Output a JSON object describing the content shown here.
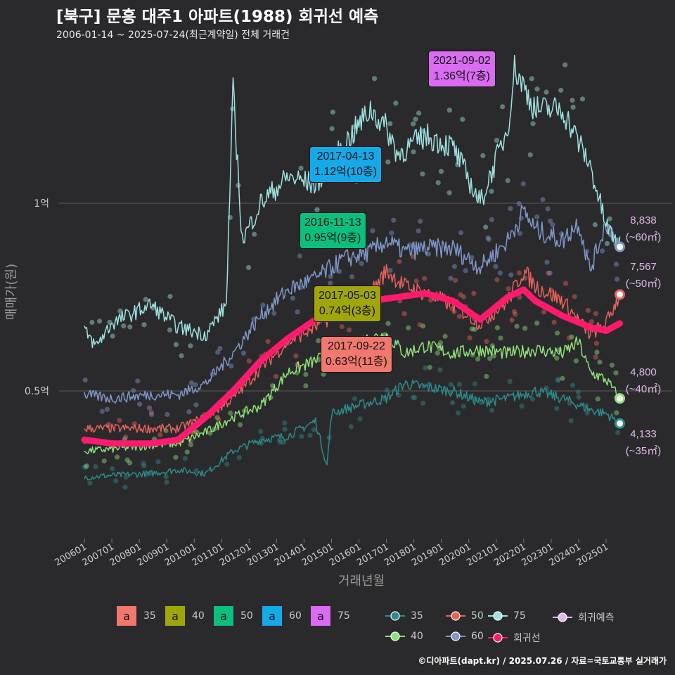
{
  "title": "[북구] 문흥 대주1 아파트(1988) 회귀선 예측",
  "subtitle": "2006-01-14 ~ 2025-07-24(최근계약일) 전체 거래건",
  "credit": "©디아파트(dapt.kr) / 2025.07.26 / 자료=국토교통부 실거래가",
  "chart_data": {
    "type": "line",
    "xlabel": "거래년월",
    "ylabel": "매매가(원)",
    "x_range": [
      "2006-01",
      "2025-07"
    ],
    "x_ticks": [
      "200601",
      "200701",
      "200801",
      "200901",
      "201001",
      "201101",
      "201201",
      "201301",
      "201401",
      "201501",
      "201601",
      "201701",
      "201801",
      "201901",
      "202001",
      "202101",
      "202201",
      "202301",
      "202401",
      "202501"
    ],
    "y_unit": "만원",
    "y_range": [
      1500,
      13500
    ],
    "y_ticks": [
      {
        "value": 5000,
        "label": "0.5억"
      },
      {
        "value": 10000,
        "label": "1억"
      }
    ],
    "grid": "horizontal",
    "series": [
      {
        "name": "35",
        "color": "#2e8a8c",
        "points": [
          [
            "2006-01",
            2700
          ],
          [
            "2007-01",
            2750
          ],
          [
            "2008-06",
            2800
          ],
          [
            "2009-06",
            2900
          ],
          [
            "2010-06",
            2800
          ],
          [
            "2011-06",
            3400
          ],
          [
            "2012-06",
            3700
          ],
          [
            "2013-06",
            3800
          ],
          [
            "2014-06",
            4200
          ],
          [
            "2014-11",
            3000
          ],
          [
            "2015-01",
            4400
          ],
          [
            "2015-06",
            4500
          ],
          [
            "2016-06",
            4700
          ],
          [
            "2017-01",
            4800
          ],
          [
            "2017-09",
            5200
          ],
          [
            "2018-06",
            5100
          ],
          [
            "2019-06",
            5000
          ],
          [
            "2020-06",
            4700
          ],
          [
            "2021-06",
            4800
          ],
          [
            "2022-06",
            5000
          ],
          [
            "2023-06",
            4800
          ],
          [
            "2024-06",
            4500
          ],
          [
            "2025-01",
            4400
          ],
          [
            "2025-07",
            4133
          ]
        ]
      },
      {
        "name": "40",
        "color": "#8fe07a",
        "points": [
          [
            "2006-01",
            3400
          ],
          [
            "2007-01",
            3450
          ],
          [
            "2008-06",
            3550
          ],
          [
            "2009-06",
            3600
          ],
          [
            "2010-06",
            3900
          ],
          [
            "2011-06",
            4300
          ],
          [
            "2012-06",
            4600
          ],
          [
            "2013-06",
            5500
          ],
          [
            "2014-06",
            5800
          ],
          [
            "2015-06",
            6200
          ],
          [
            "2016-06",
            6400
          ],
          [
            "2017-01",
            6500
          ],
          [
            "2017-09",
            6000
          ],
          [
            "2018-06",
            6200
          ],
          [
            "2019-06",
            6000
          ],
          [
            "2020-06",
            6100
          ],
          [
            "2021-06",
            6000
          ],
          [
            "2022-06",
            6100
          ],
          [
            "2023-06",
            6000
          ],
          [
            "2024-01",
            6300
          ],
          [
            "2024-06",
            5500
          ],
          [
            "2025-01",
            5300
          ],
          [
            "2025-07",
            4800
          ]
        ]
      },
      {
        "name": "50",
        "color": "#e8625a",
        "points": [
          [
            "2006-01",
            4000
          ],
          [
            "2007-01",
            4000
          ],
          [
            "2008-06",
            4000
          ],
          [
            "2009-06",
            4000
          ],
          [
            "2010-06",
            4300
          ],
          [
            "2011-06",
            4800
          ],
          [
            "2012-06",
            5600
          ],
          [
            "2013-06",
            6300
          ],
          [
            "2014-06",
            6700
          ],
          [
            "2015-06",
            7200
          ],
          [
            "2016-06",
            7600
          ],
          [
            "2017-01",
            8200
          ],
          [
            "2017-09",
            7800
          ],
          [
            "2018-06",
            7600
          ],
          [
            "2019-06",
            7300
          ],
          [
            "2020-06",
            6800
          ],
          [
            "2021-06",
            7400
          ],
          [
            "2022-01",
            8200
          ],
          [
            "2022-06",
            7800
          ],
          [
            "2023-06",
            7400
          ],
          [
            "2024-06",
            6500
          ],
          [
            "2025-01",
            6800
          ],
          [
            "2025-07",
            7567
          ]
        ]
      },
      {
        "name": "60",
        "color": "#7f97c9",
        "points": [
          [
            "2006-01",
            4900
          ],
          [
            "2007-01",
            4800
          ],
          [
            "2008-06",
            4900
          ],
          [
            "2009-06",
            4900
          ],
          [
            "2010-06",
            5200
          ],
          [
            "2011-06",
            6000
          ],
          [
            "2012-06",
            7000
          ],
          [
            "2013-06",
            7700
          ],
          [
            "2014-06",
            8000
          ],
          [
            "2015-06",
            8500
          ],
          [
            "2016-06",
            8700
          ],
          [
            "2017-01",
            9000
          ],
          [
            "2017-09",
            8700
          ],
          [
            "2018-06",
            8800
          ],
          [
            "2019-06",
            8800
          ],
          [
            "2020-06",
            8300
          ],
          [
            "2021-06",
            9000
          ],
          [
            "2022-01",
            9800
          ],
          [
            "2022-06",
            9300
          ],
          [
            "2023-06",
            9000
          ],
          [
            "2024-01",
            9500
          ],
          [
            "2024-06",
            8200
          ],
          [
            "2025-01",
            9500
          ],
          [
            "2025-07",
            8838
          ]
        ]
      },
      {
        "name": "75",
        "color": "#9fe0e0",
        "points": [
          [
            "2006-01",
            6600
          ],
          [
            "2006-06",
            6200
          ],
          [
            "2007-01",
            6800
          ],
          [
            "2008-06",
            7300
          ],
          [
            "2009-06",
            6700
          ],
          [
            "2010-06",
            6500
          ],
          [
            "2011-03",
            7300
          ],
          [
            "2011-06",
            13000
          ],
          [
            "2011-10",
            9000
          ],
          [
            "2012-06",
            10000
          ],
          [
            "2013-06",
            10700
          ],
          [
            "2014-06",
            10500
          ],
          [
            "2015-06",
            11500
          ],
          [
            "2016-06",
            12500
          ],
          [
            "2017-01",
            12000
          ],
          [
            "2017-06",
            11300
          ],
          [
            "2018-06",
            11800
          ],
          [
            "2019-06",
            11500
          ],
          [
            "2020-06",
            10000
          ],
          [
            "2021-06",
            12000
          ],
          [
            "2021-09",
            13600
          ],
          [
            "2022-06",
            12500
          ],
          [
            "2023-06",
            12500
          ],
          [
            "2024-06",
            11000
          ],
          [
            "2025-01",
            9400
          ],
          [
            "2025-07",
            8838
          ]
        ]
      },
      {
        "name": "회귀선",
        "color": "#ff1a6e",
        "points": [
          [
            "2006-01",
            3700
          ],
          [
            "2007-01",
            3600
          ],
          [
            "2008-06",
            3600
          ],
          [
            "2009-06",
            3700
          ],
          [
            "2010-06",
            4300
          ],
          [
            "2011-06",
            5000
          ],
          [
            "2012-06",
            5800
          ],
          [
            "2013-06",
            6400
          ],
          [
            "2014-06",
            6900
          ],
          [
            "2015-06",
            7200
          ],
          [
            "2016-06",
            7400
          ],
          [
            "2017-06",
            7500
          ],
          [
            "2018-06",
            7600
          ],
          [
            "2019-06",
            7400
          ],
          [
            "2020-06",
            6900
          ],
          [
            "2021-06",
            7500
          ],
          [
            "2022-01",
            7700
          ],
          [
            "2022-06",
            7400
          ],
          [
            "2023-06",
            7000
          ],
          [
            "2024-06",
            6700
          ],
          [
            "2025-01",
            6600
          ],
          [
            "2025-07",
            6800
          ]
        ]
      }
    ],
    "annotations": [
      {
        "date": "2021-09-02",
        "price": "1.36억(7층)",
        "size": "75",
        "color": "#d96cf0"
      },
      {
        "date": "2017-04-13",
        "price": "1.12억(10층)",
        "size": "60",
        "color": "#16a9e8"
      },
      {
        "date": "2016-11-13",
        "price": "0.95억(9층)",
        "size": "50",
        "color": "#0bbf7f"
      },
      {
        "date": "2017-05-03",
        "price": "0.74억(3층)",
        "size": "40",
        "color": "#a0a60a"
      },
      {
        "date": "2017-09-22",
        "price": "0.63억(11층)",
        "size": "35",
        "color": "#f0786e"
      }
    ],
    "end_labels": [
      {
        "size": "60",
        "value": "8,838",
        "area": "(~60㎡)",
        "color": "#7f97c9"
      },
      {
        "size": "50",
        "value": "7,567",
        "area": "(~50㎡)",
        "color": "#e8625a"
      },
      {
        "size": "40",
        "value": "4,800",
        "area": "(~40㎡)",
        "color": "#8fe07a"
      },
      {
        "size": "35",
        "value": "4,133",
        "area": "(~35㎡)",
        "color": "#2e8a8c"
      }
    ],
    "legend_fill": [
      {
        "label": "35",
        "color": "#f0786e",
        "key": "a"
      },
      {
        "label": "40",
        "color": "#a0a60a",
        "key": "a"
      },
      {
        "label": "50",
        "color": "#0bbf7f",
        "key": "a"
      },
      {
        "label": "60",
        "color": "#16a9e8",
        "key": "a"
      },
      {
        "label": "75",
        "color": "#d96cf0",
        "key": "a"
      }
    ],
    "legend_lines": [
      {
        "label": "35",
        "color": "#2e8a8c"
      },
      {
        "label": "40",
        "color": "#8fe07a"
      },
      {
        "label": "50",
        "color": "#e8625a"
      },
      {
        "label": "60",
        "color": "#7f97c9"
      },
      {
        "label": "75",
        "color": "#9fe0e0"
      },
      {
        "label": "회귀선",
        "color": "#ff1a6e"
      },
      {
        "label": "회귀예측",
        "color": "#e2b8ec"
      }
    ]
  }
}
